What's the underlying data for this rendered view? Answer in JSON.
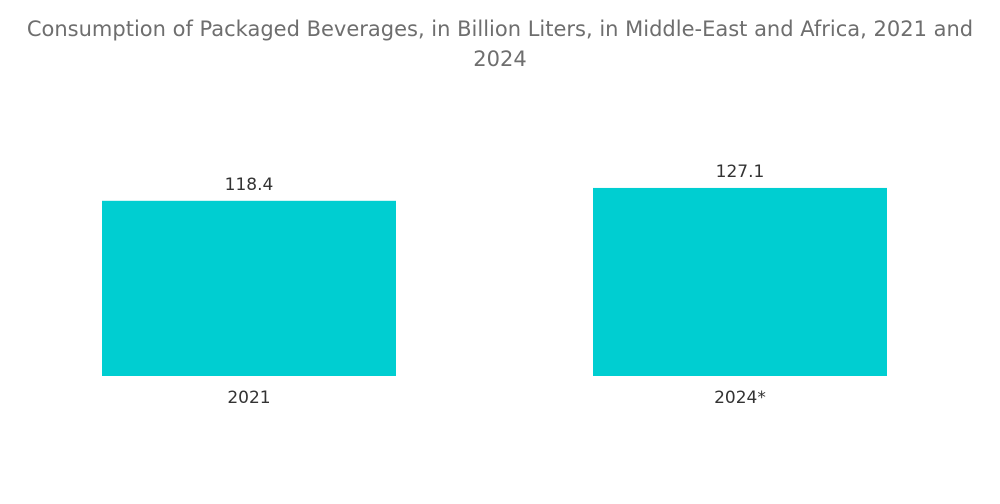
{
  "chart_data": {
    "type": "bar",
    "title": "Consumption of Packaged Beverages, in Billion Liters, in Middle-East and Africa, 2021 and 2024",
    "categories": [
      "2021",
      "2024*"
    ],
    "values": [
      118.4,
      127.1
    ],
    "value_labels": [
      "118.4",
      "127.1"
    ],
    "xlabel": "",
    "ylabel": "",
    "grid": false,
    "legend": "none",
    "bar_color": "#00CED1"
  }
}
